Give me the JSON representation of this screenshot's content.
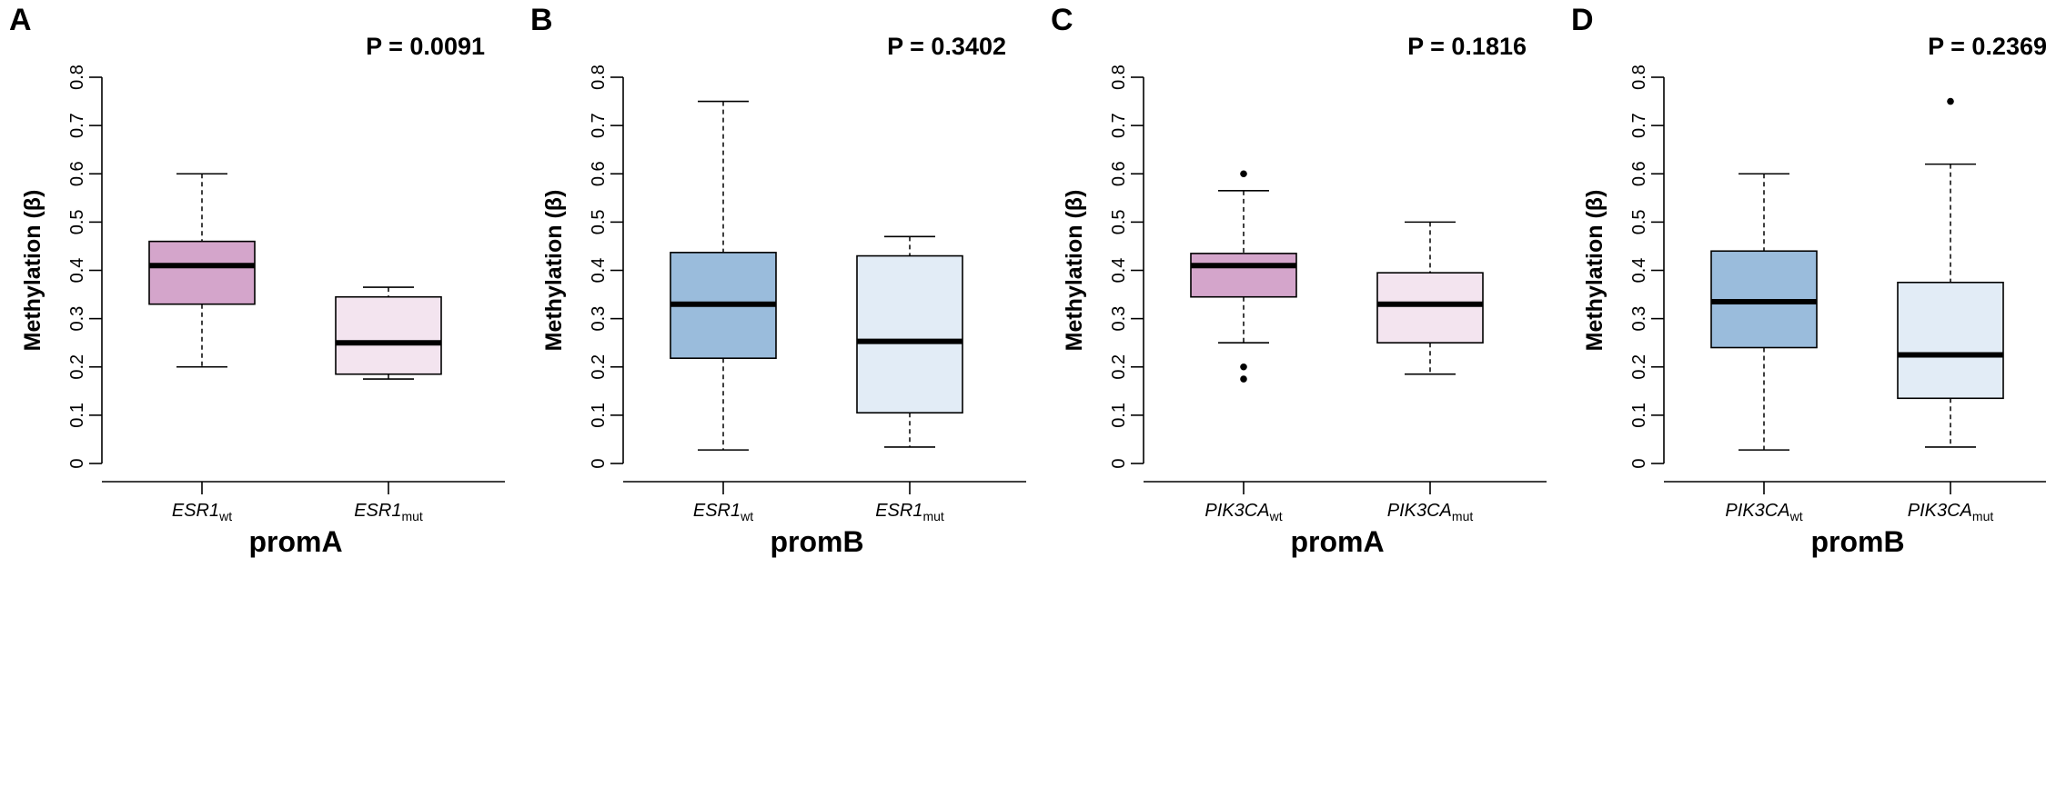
{
  "chart_data": [
    {
      "panel": "A",
      "type": "box",
      "pvalue": "P = 0.0091",
      "ylabel": "Methylation (β)",
      "xlabel": "promA",
      "ylim": [
        0,
        0.8
      ],
      "yticks": [
        "0",
        "0.1",
        "0.2",
        "0.3",
        "0.4",
        "0.5",
        "0.6",
        "0.7",
        "0.8"
      ],
      "groups": [
        {
          "gene": "ESR1",
          "sub": "wt",
          "min": 0.2,
          "q1": 0.33,
          "median": 0.41,
          "q3": 0.46,
          "max": 0.6,
          "outliers": [],
          "color": "#d4a5cb"
        },
        {
          "gene": "ESR1",
          "sub": "mut",
          "min": 0.175,
          "q1": 0.185,
          "median": 0.25,
          "q3": 0.345,
          "max": 0.365,
          "outliers": [],
          "color": "#f3e4ef"
        }
      ]
    },
    {
      "panel": "B",
      "type": "box",
      "pvalue": "P = 0.3402",
      "ylabel": "Methylation (β)",
      "xlabel": "promB",
      "ylim": [
        0,
        0.8
      ],
      "yticks": [
        "0",
        "0.1",
        "0.2",
        "0.3",
        "0.4",
        "0.5",
        "0.6",
        "0.7",
        "0.8"
      ],
      "groups": [
        {
          "gene": "ESR1",
          "sub": "wt",
          "min": 0.028,
          "q1": 0.218,
          "median": 0.33,
          "q3": 0.437,
          "max": 0.75,
          "outliers": [],
          "color": "#9abcdc"
        },
        {
          "gene": "ESR1",
          "sub": "mut",
          "min": 0.034,
          "q1": 0.105,
          "median": 0.253,
          "q3": 0.43,
          "max": 0.47,
          "outliers": [],
          "color": "#e2ecf6"
        }
      ]
    },
    {
      "panel": "C",
      "type": "box",
      "pvalue": "P = 0.1816",
      "ylabel": "Methylation (β)",
      "xlabel": "promA",
      "ylim": [
        0,
        0.8
      ],
      "yticks": [
        "0",
        "0.1",
        "0.2",
        "0.3",
        "0.4",
        "0.5",
        "0.6",
        "0.7",
        "0.8"
      ],
      "groups": [
        {
          "gene": "PIK3CA",
          "sub": "wt",
          "min": 0.25,
          "q1": 0.345,
          "median": 0.41,
          "q3": 0.435,
          "max": 0.565,
          "outliers": [
            0.6,
            0.2,
            0.175
          ],
          "color": "#d4a5cb"
        },
        {
          "gene": "PIK3CA",
          "sub": "mut",
          "min": 0.185,
          "q1": 0.25,
          "median": 0.33,
          "q3": 0.395,
          "max": 0.5,
          "outliers": [],
          "color": "#f3e4ef"
        }
      ]
    },
    {
      "panel": "D",
      "type": "box",
      "pvalue": "P = 0.2369",
      "ylabel": "Methylation (β)",
      "xlabel": "promB",
      "ylim": [
        0,
        0.8
      ],
      "yticks": [
        "0",
        "0.1",
        "0.2",
        "0.3",
        "0.4",
        "0.5",
        "0.6",
        "0.7",
        "0.8"
      ],
      "groups": [
        {
          "gene": "PIK3CA",
          "sub": "wt",
          "min": 0.028,
          "q1": 0.24,
          "median": 0.335,
          "q3": 0.44,
          "max": 0.6,
          "outliers": [],
          "color": "#9abcdc"
        },
        {
          "gene": "PIK3CA",
          "sub": "mut",
          "min": 0.034,
          "q1": 0.135,
          "median": 0.225,
          "q3": 0.375,
          "max": 0.62,
          "outliers": [
            0.75
          ],
          "color": "#e2ecf6"
        }
      ]
    }
  ]
}
